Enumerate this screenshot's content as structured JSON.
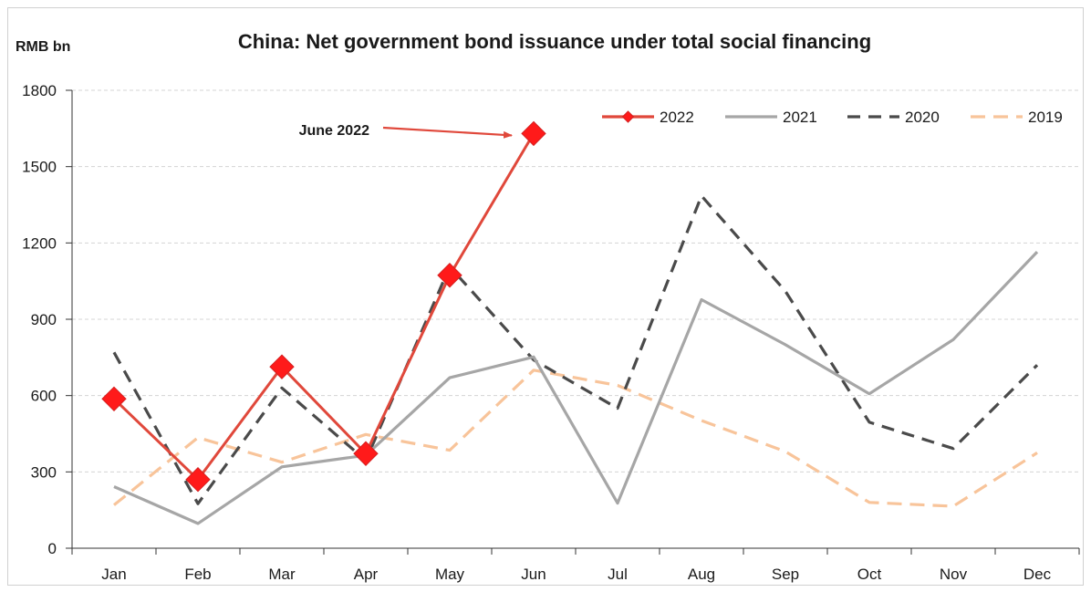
{
  "chart_data": {
    "type": "line",
    "title": "China: Net government bond issuance under total social financing",
    "ylabel": "RMB bn",
    "xlabel": "",
    "categories": [
      "Jan",
      "Feb",
      "Mar",
      "Apr",
      "May",
      "Jun",
      "Jul",
      "Aug",
      "Sep",
      "Oct",
      "Nov",
      "Dec"
    ],
    "ylim": [
      0,
      1800
    ],
    "yticks": [
      0,
      300,
      600,
      900,
      1200,
      1500,
      1800
    ],
    "grid": true,
    "legend_position": "top-right",
    "series": [
      {
        "name": "2022",
        "color": "#e0483b",
        "style": "solid-diamond",
        "values": [
          587,
          270,
          713,
          372,
          1073,
          1630,
          null,
          null,
          null,
          null,
          null,
          null
        ]
      },
      {
        "name": "2021",
        "color": "#a6a6a6",
        "style": "solid",
        "values": [
          242,
          97,
          320,
          365,
          670,
          752,
          177,
          977,
          800,
          607,
          820,
          1165
        ]
      },
      {
        "name": "2020",
        "color": "#4a4a4a",
        "style": "dashed",
        "values": [
          770,
          175,
          630,
          345,
          1107,
          740,
          550,
          1385,
          1010,
          495,
          392,
          720
        ]
      },
      {
        "name": "2019",
        "color": "#f8c49a",
        "style": "dashed",
        "values": [
          170,
          435,
          338,
          447,
          385,
          700,
          640,
          502,
          380,
          180,
          165,
          375
        ]
      }
    ],
    "annotations": [
      {
        "text": "June 2022",
        "target_category": "Jun",
        "target_value": 1630
      }
    ]
  }
}
